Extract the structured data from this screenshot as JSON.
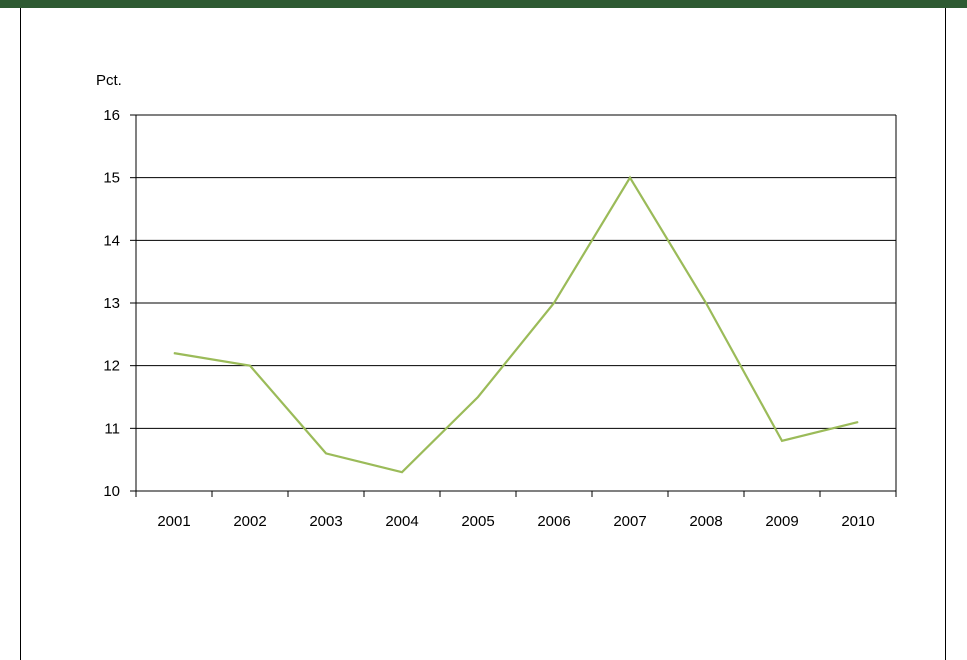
{
  "colors": {
    "header_bar": "#2e5a32",
    "series_line": "#9bbb59",
    "axis": "#000000"
  },
  "chart_data": {
    "type": "line",
    "title": "",
    "xlabel": "",
    "ylabel": "Pct.",
    "categories": [
      "2001",
      "2002",
      "2003",
      "2004",
      "2005",
      "2006",
      "2007",
      "2008",
      "2009",
      "2010"
    ],
    "series": [
      {
        "values": [
          12.2,
          12.0,
          10.6,
          10.3,
          11.5,
          13.0,
          15.0,
          13.0,
          10.8,
          11.1
        ]
      }
    ],
    "ylim": [
      10,
      16
    ],
    "yticks": [
      10,
      11,
      12,
      13,
      14,
      15,
      16
    ],
    "grid": true,
    "legend": "none"
  }
}
